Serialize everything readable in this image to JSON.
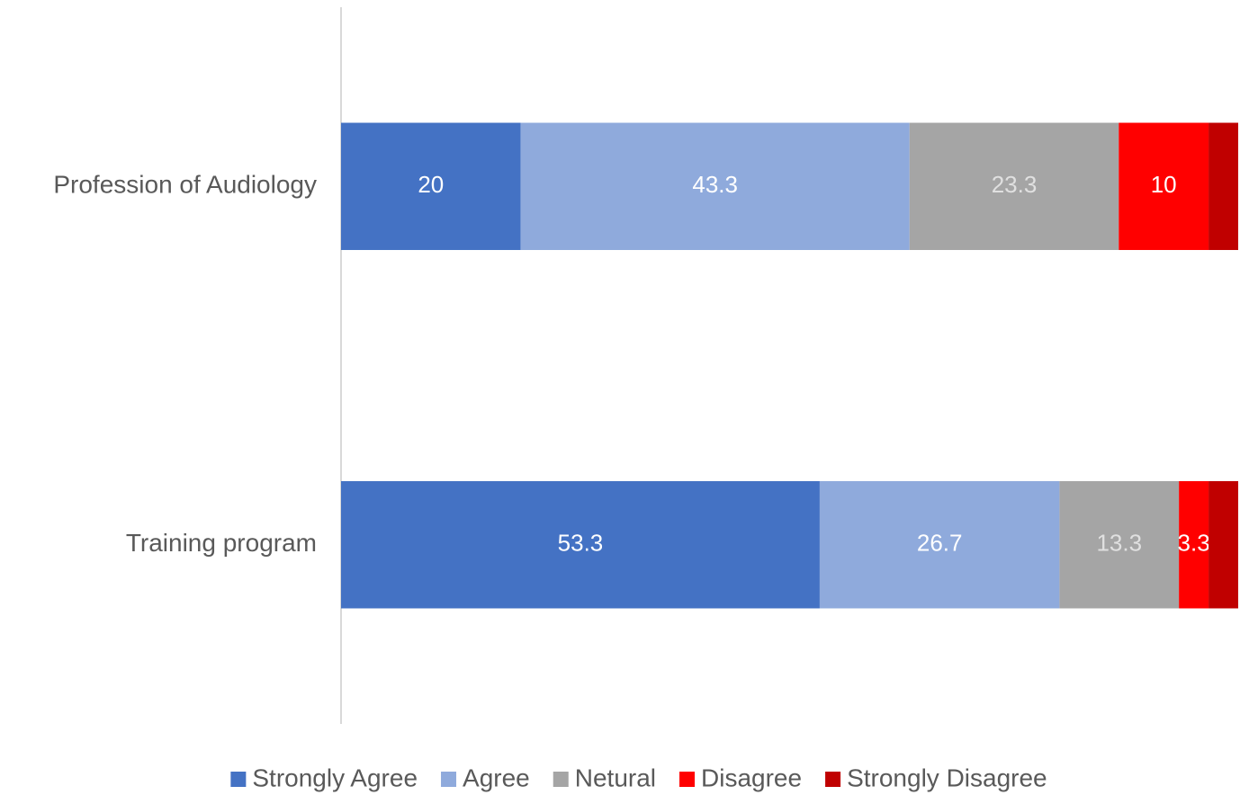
{
  "chart_data": {
    "type": "stacked_barh",
    "categories": [
      "Profession of Audiology",
      "Training program"
    ],
    "series": [
      {
        "name": "Strongly Agree",
        "color": "#4472c4",
        "label_color": "#ffffff",
        "values": [
          20,
          53.3
        ]
      },
      {
        "name": "Agree",
        "color": "#8faadc",
        "label_color": "#ffffff",
        "values": [
          43.3,
          26.7
        ]
      },
      {
        "name": "Netural",
        "color": "#a5a5a5",
        "label_color": "#e0e0e0",
        "values": [
          23.3,
          13.3
        ]
      },
      {
        "name": "Disagree",
        "color": "#ff0000",
        "label_color": "#ffffff",
        "values": [
          10,
          3.3
        ]
      },
      {
        "name": "Strongly Disagree",
        "color": "#c00000",
        "show_labels": false,
        "values": [
          3.3,
          3.3
        ]
      }
    ],
    "xlim": [
      0,
      100
    ],
    "legend": "bottom"
  }
}
